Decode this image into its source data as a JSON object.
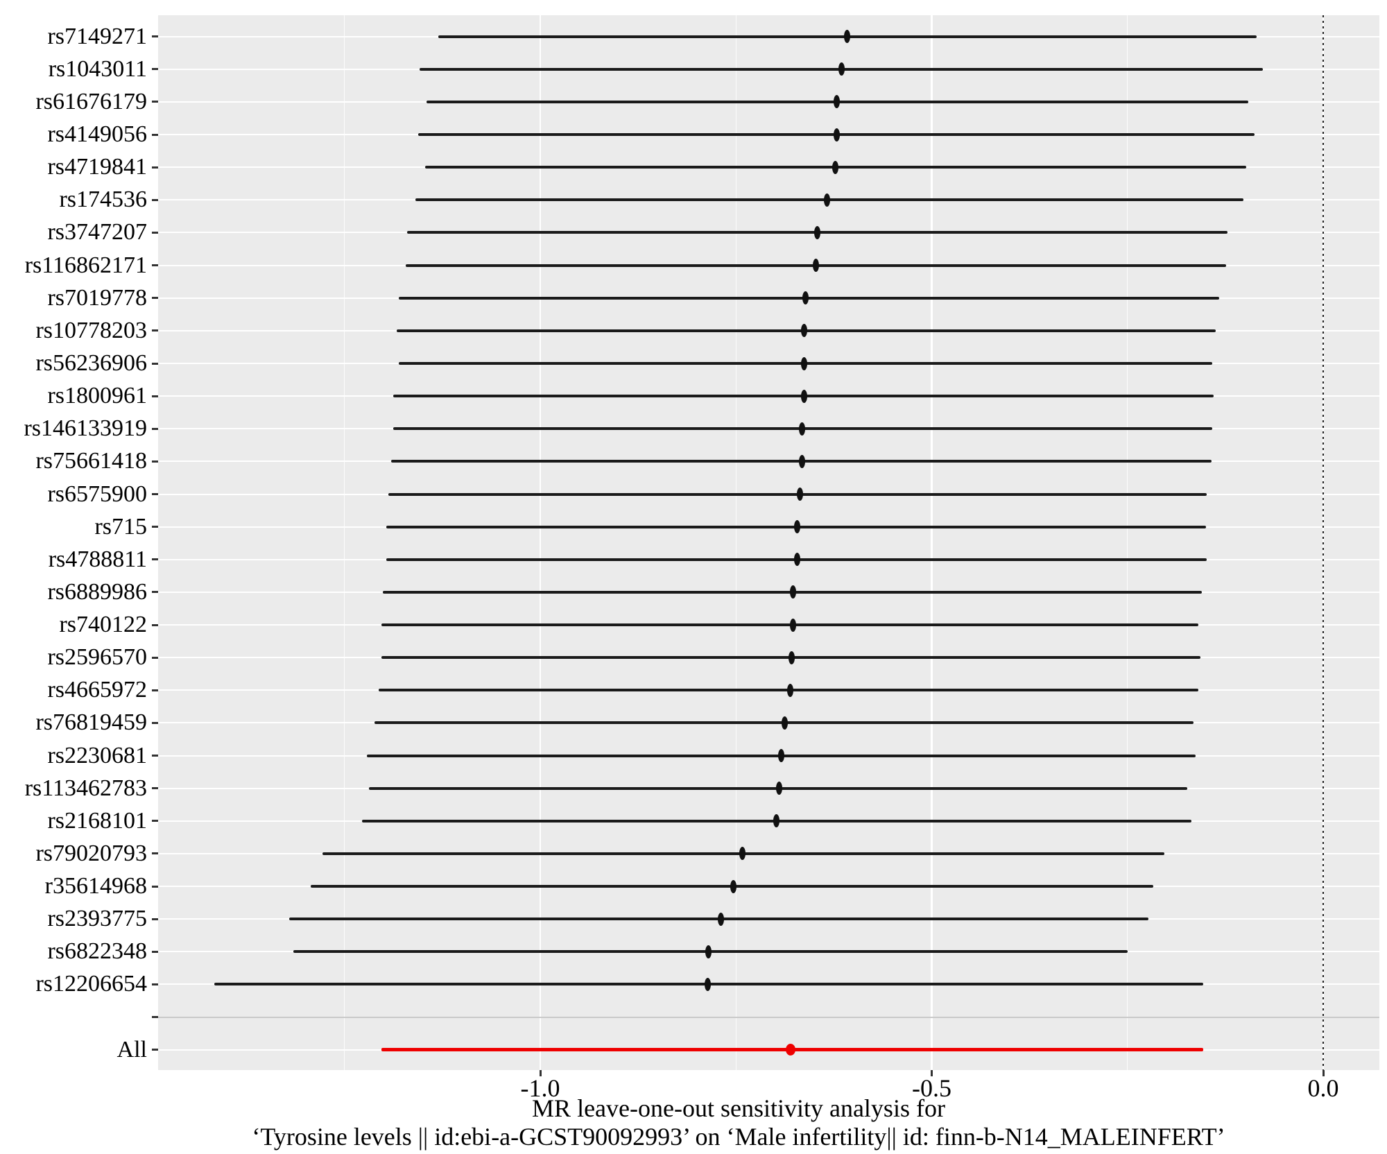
{
  "figure": {
    "kind": "MR leave-one-out forest plot"
  },
  "chart_data": {
    "type": "scatter",
    "subtype": "forest-leave-one-out",
    "title": "",
    "xlabel_line1": "MR leave-one-out sensitivity analysis for",
    "xlabel_line2": "‘Tyrosine levels || id:ebi-a-GCST90092993’ on ‘Male infertility|| id: finn-b-N14_MALEINFERT’",
    "ylabel": "",
    "xlim": [
      -1.49,
      0.07
    ],
    "x_axis": {
      "major_ticks": [
        -1.0,
        -0.5,
        0.0
      ],
      "major_tick_labels": [
        "-1.0",
        "-0.5",
        "0.0"
      ],
      "minor_gridlines": [
        -1.25,
        -0.75,
        -0.25
      ],
      "reference_line_x": 0.0
    },
    "grid": "on",
    "legend": "none",
    "rows": [
      {
        "label": "rs7149271",
        "estimate": -0.608,
        "ci_lower": -1.13,
        "ci_upper": -0.085
      },
      {
        "label": "rs1043011",
        "estimate": -0.615,
        "ci_lower": -1.154,
        "ci_upper": -0.077
      },
      {
        "label": "rs61676179",
        "estimate": -0.621,
        "ci_lower": -1.145,
        "ci_upper": -0.096
      },
      {
        "label": "rs4149056",
        "estimate": -0.621,
        "ci_lower": -1.156,
        "ci_upper": -0.088
      },
      {
        "label": "rs4719841",
        "estimate": -0.623,
        "ci_lower": -1.147,
        "ci_upper": -0.098
      },
      {
        "label": "rs174536",
        "estimate": -0.634,
        "ci_lower": -1.159,
        "ci_upper": -0.102
      },
      {
        "label": "rs3747207",
        "estimate": -0.646,
        "ci_lower": -1.17,
        "ci_upper": -0.122
      },
      {
        "label": "rs116862171",
        "estimate": -0.648,
        "ci_lower": -1.172,
        "ci_upper": -0.124
      },
      {
        "label": "rs7019778",
        "estimate": -0.661,
        "ci_lower": -1.181,
        "ci_upper": -0.133
      },
      {
        "label": "rs10778203",
        "estimate": -0.663,
        "ci_lower": -1.183,
        "ci_upper": -0.137
      },
      {
        "label": "rs56236906",
        "estimate": -0.663,
        "ci_lower": -1.181,
        "ci_upper": -0.142
      },
      {
        "label": "rs1800961",
        "estimate": -0.663,
        "ci_lower": -1.188,
        "ci_upper": -0.14
      },
      {
        "label": "rs146133919",
        "estimate": -0.666,
        "ci_lower": -1.188,
        "ci_upper": -0.142
      },
      {
        "label": "rs75661418",
        "estimate": -0.666,
        "ci_lower": -1.19,
        "ci_upper": -0.143
      },
      {
        "label": "rs6575900",
        "estimate": -0.668,
        "ci_lower": -1.194,
        "ci_upper": -0.149
      },
      {
        "label": "rs715",
        "estimate": -0.672,
        "ci_lower": -1.197,
        "ci_upper": -0.15
      },
      {
        "label": "rs4788811",
        "estimate": -0.672,
        "ci_lower": -1.197,
        "ci_upper": -0.149
      },
      {
        "label": "rs6889986",
        "estimate": -0.677,
        "ci_lower": -1.201,
        "ci_upper": -0.155
      },
      {
        "label": "rs740122",
        "estimate": -0.677,
        "ci_lower": -1.203,
        "ci_upper": -0.159
      },
      {
        "label": "rs2596570",
        "estimate": -0.679,
        "ci_lower": -1.203,
        "ci_upper": -0.157
      },
      {
        "label": "rs4665972",
        "estimate": -0.681,
        "ci_lower": -1.206,
        "ci_upper": -0.159
      },
      {
        "label": "rs76819459",
        "estimate": -0.688,
        "ci_lower": -1.212,
        "ci_upper": -0.166
      },
      {
        "label": "rs2230681",
        "estimate": -0.692,
        "ci_lower": -1.221,
        "ci_upper": -0.163
      },
      {
        "label": "rs113462783",
        "estimate": -0.695,
        "ci_lower": -1.219,
        "ci_upper": -0.174
      },
      {
        "label": "rs2168101",
        "estimate": -0.698,
        "ci_lower": -1.228,
        "ci_upper": -0.168
      },
      {
        "label": "rs79020793",
        "estimate": -0.742,
        "ci_lower": -1.278,
        "ci_upper": -0.203
      },
      {
        "label": "r35614968",
        "estimate": -0.753,
        "ci_lower": -1.293,
        "ci_upper": -0.217
      },
      {
        "label": "rs2393775",
        "estimate": -0.769,
        "ci_lower": -1.321,
        "ci_upper": -0.223
      },
      {
        "label": "rs6822348",
        "estimate": -0.785,
        "ci_lower": -1.315,
        "ci_upper": -0.25
      },
      {
        "label": "rs12206654",
        "estimate": -0.786,
        "ci_lower": -1.416,
        "ci_upper": -0.153
      }
    ],
    "summary_row": {
      "label": "All",
      "estimate": -0.68,
      "ci_lower": -1.203,
      "ci_upper": -0.153
    },
    "colors": {
      "panel_background": "#EBEBEB",
      "gridline": "#FFFFFF",
      "ci_line": "#1A1A1A",
      "summary_line": "#EE0000",
      "separator_line": "#C9C9C9",
      "tick": "#333333",
      "reference_line": "#222222"
    }
  }
}
